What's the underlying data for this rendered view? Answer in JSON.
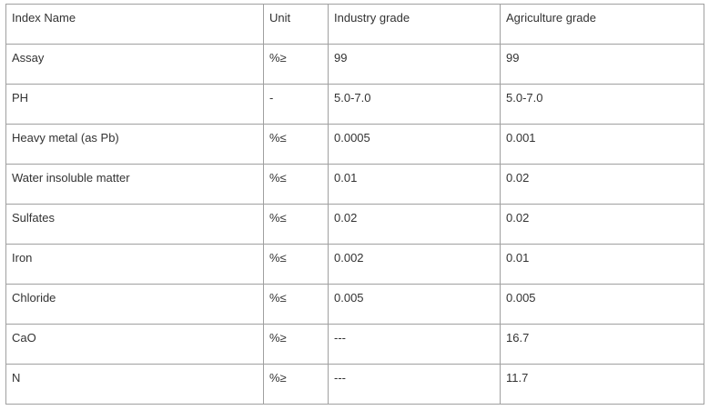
{
  "table": {
    "header": [
      "Index Name",
      "Unit",
      "Industry grade",
      "Agriculture grade"
    ],
    "rows": [
      [
        "Assay",
        "%≥",
        "99",
        "99"
      ],
      [
        "PH",
        "-",
        "5.0-7.0",
        "5.0-7.0"
      ],
      [
        "Heavy metal (as Pb)",
        "%≤",
        "0.0005",
        "0.001"
      ],
      [
        "Water insoluble matter",
        "%≤",
        "0.01",
        "0.02"
      ],
      [
        "Sulfates",
        "%≤",
        "0.02",
        "0.02"
      ],
      [
        "Iron",
        "%≤",
        "0.002",
        "0.01"
      ],
      [
        "Chloride",
        "%≤",
        "0.005",
        "0.005"
      ],
      [
        "CaO",
        "%≥",
        "---",
        "16.7"
      ],
      [
        "N",
        "%≥",
        "---",
        "11.7"
      ]
    ]
  }
}
